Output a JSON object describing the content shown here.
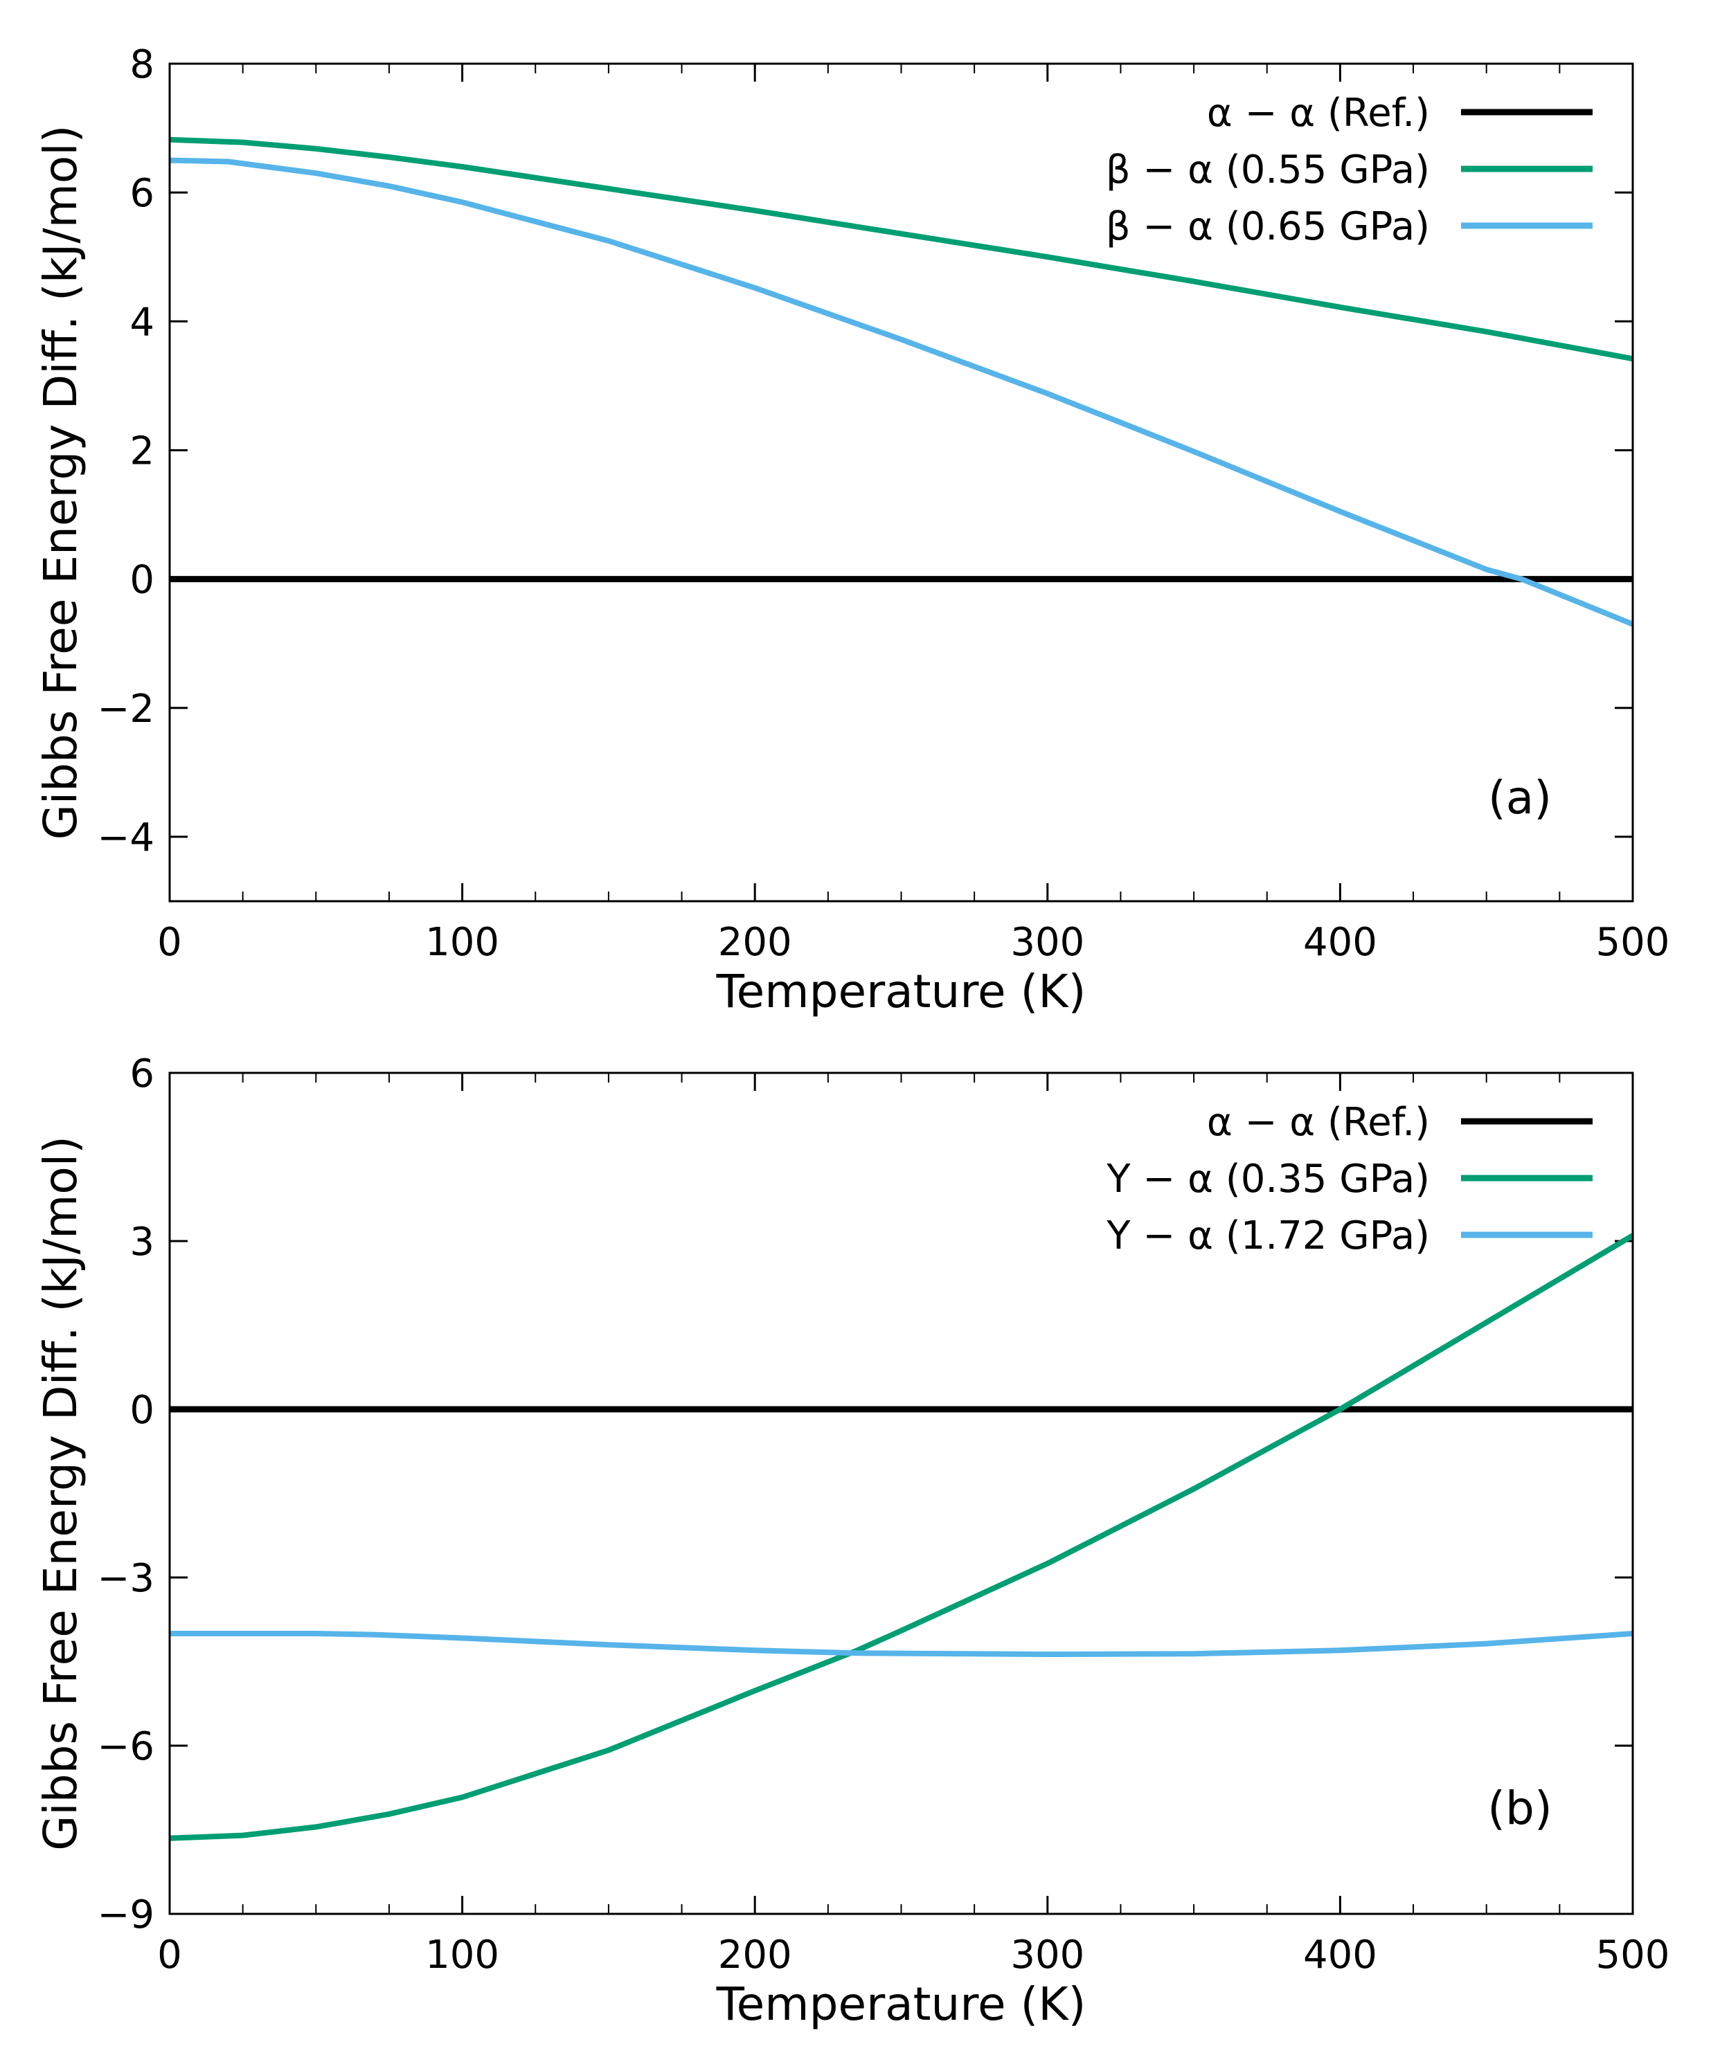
{
  "chart_data": [
    {
      "type": "line",
      "panel_label": "(a)",
      "xlabel": "Temperature (K)",
      "ylabel": "Gibbs Free Energy Diff. (kJ/mol)",
      "xlim": [
        0,
        500
      ],
      "ylim": [
        -5,
        8
      ],
      "xticks": [
        0,
        100,
        200,
        300,
        400,
        500
      ],
      "xtick_labels": [
        "0",
        "100",
        "200",
        "300",
        "400",
        "500"
      ],
      "yticks": [
        -4,
        -2,
        0,
        2,
        4,
        6,
        8
      ],
      "ytick_labels": [
        "−4",
        "−2",
        "0",
        "2",
        "4",
        "6",
        "8"
      ],
      "legend_position": "top-right",
      "series": [
        {
          "name": "α − α (Ref.)",
          "color": "#000000",
          "x": [
            0,
            500
          ],
          "y": [
            0,
            0
          ]
        },
        {
          "name": "β − α (0.55 GPa)",
          "color": "#009e73",
          "x": [
            0,
            25,
            50,
            75,
            100,
            150,
            200,
            250,
            300,
            350,
            400,
            450,
            500
          ],
          "y": [
            6.82,
            6.78,
            6.68,
            6.55,
            6.4,
            6.06,
            5.72,
            5.36,
            5.0,
            4.62,
            4.22,
            3.84,
            3.42
          ]
        },
        {
          "name": "β − α (0.65 GPa)",
          "color": "#56b4e9",
          "x": [
            0,
            20,
            50,
            75,
            100,
            150,
            200,
            250,
            300,
            350,
            400,
            450,
            462,
            500
          ],
          "y": [
            6.5,
            6.48,
            6.3,
            6.1,
            5.85,
            5.25,
            4.52,
            3.72,
            2.88,
            1.98,
            1.05,
            0.15,
            0.0,
            -0.7
          ]
        }
      ]
    },
    {
      "type": "line",
      "panel_label": "(b)",
      "xlabel": "Temperature (K)",
      "ylabel": "Gibbs Free Energy Diff. (kJ/mol)",
      "xlim": [
        0,
        500
      ],
      "ylim": [
        -9,
        6
      ],
      "xticks": [
        0,
        100,
        200,
        300,
        400,
        500
      ],
      "xtick_labels": [
        "0",
        "100",
        "200",
        "300",
        "400",
        "500"
      ],
      "yticks": [
        -9,
        -6,
        -3,
        0,
        3,
        6
      ],
      "ytick_labels": [
        "−9",
        "−6",
        "−3",
        "0",
        "3",
        "6"
      ],
      "legend_position": "top-right",
      "series": [
        {
          "name": "α − α  (Ref.)",
          "color": "#000000",
          "x": [
            0,
            500
          ],
          "y": [
            0,
            0
          ]
        },
        {
          "name": "Y − α  (0.35 GPa)",
          "color": "#009e73",
          "x": [
            0,
            25,
            50,
            75,
            100,
            150,
            200,
            235,
            250,
            300,
            350,
            400,
            450,
            500
          ],
          "y": [
            -7.65,
            -7.6,
            -7.45,
            -7.22,
            -6.92,
            -6.08,
            -5.02,
            -4.3,
            -3.95,
            -2.75,
            -1.42,
            0.0,
            1.55,
            3.1
          ]
        },
        {
          "name": "Y − α  (1.72 GPa)",
          "color": "#56b4e9",
          "x": [
            0,
            50,
            70,
            100,
            150,
            200,
            235,
            300,
            350,
            400,
            450,
            500
          ],
          "y": [
            -4.0,
            -4.0,
            -4.02,
            -4.08,
            -4.2,
            -4.3,
            -4.35,
            -4.37,
            -4.36,
            -4.3,
            -4.18,
            -4.0
          ]
        }
      ]
    }
  ]
}
